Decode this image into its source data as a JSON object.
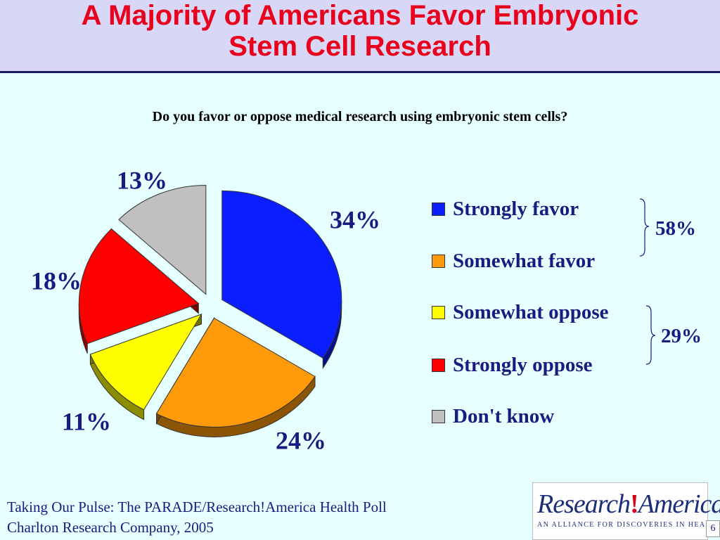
{
  "title": {
    "line1": "A Majority of Americans Favor Embryonic",
    "line2": "Stem Cell Research"
  },
  "question": "Do you favor or oppose medical research using embryonic stem cells?",
  "chart_data": {
    "type": "pie",
    "title": "Do you favor or oppose medical research using embryonic stem cells?",
    "categories": [
      "Strongly favor",
      "Somewhat favor",
      "Somewhat oppose",
      "Strongly oppose",
      "Don't know"
    ],
    "values": [
      34,
      24,
      11,
      18,
      13
    ],
    "labels": [
      "34%",
      "24%",
      "11%",
      "18%",
      "13%"
    ],
    "colors": [
      "#0a1eff",
      "#ff9a0a",
      "#ffff00",
      "#ff0000",
      "#c0c0c0"
    ],
    "legend_position": "right",
    "groups": [
      {
        "label": "58%",
        "members": [
          "Strongly favor",
          "Somewhat favor"
        ]
      },
      {
        "label": "29%",
        "members": [
          "Somewhat oppose",
          "Strongly oppose"
        ]
      }
    ]
  },
  "footer": {
    "line1": "Taking Our Pulse: The PARADE/Research!America Health Poll",
    "line2": "Charlton Research Company, 2005"
  },
  "logo": {
    "left": "Research",
    "bang": "!",
    "right": "America",
    "tagline": "AN ALLIANCE FOR DISCOVERIES IN HEALTH",
    "reg": "®"
  },
  "slide_number": "6"
}
